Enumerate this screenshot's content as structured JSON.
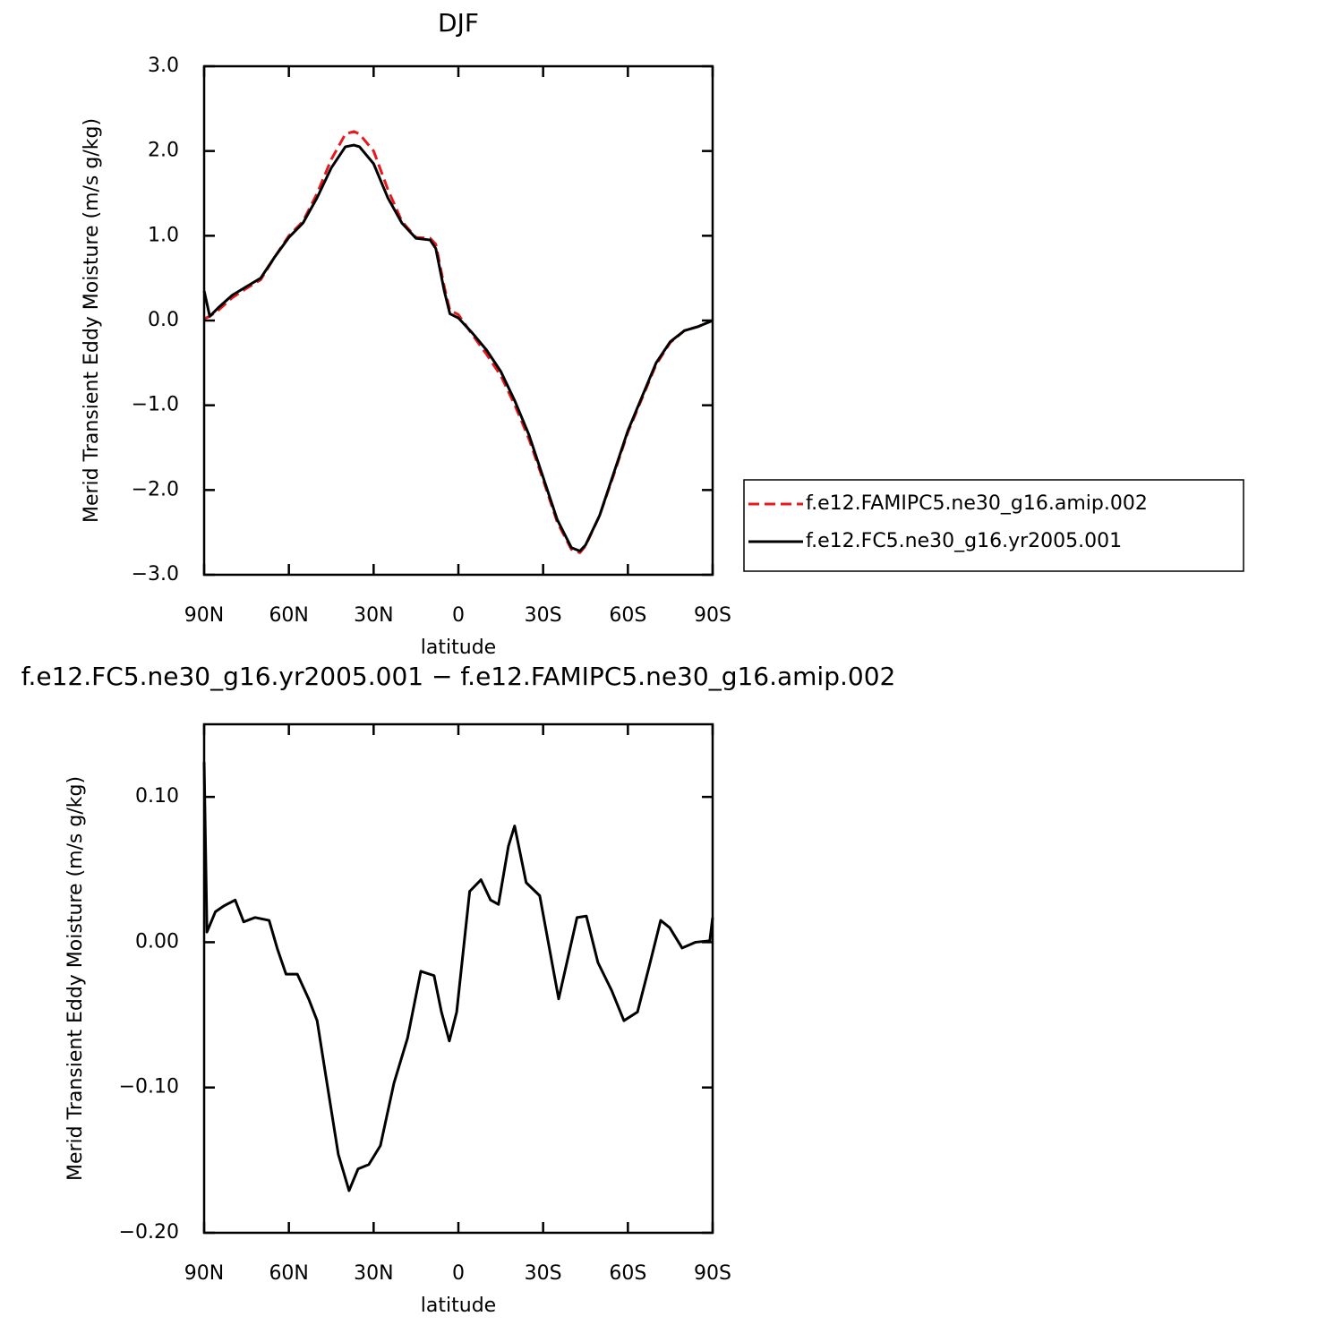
{
  "chart_data": [
    {
      "type": "line",
      "title": "DJF",
      "xlabel": "latitude",
      "ylabel": "Merid Transient Eddy Moisture (m/s g/kg)",
      "x": [
        90,
        88,
        85,
        80,
        75,
        70,
        65,
        60,
        55,
        50,
        45,
        40,
        37,
        35,
        30,
        25,
        20,
        15,
        10,
        8,
        5,
        3,
        0,
        -5,
        -10,
        -15,
        -20,
        -25,
        -30,
        -35,
        -40,
        -43,
        -45,
        -50,
        -55,
        -60,
        -65,
        -70,
        -75,
        -80,
        -85,
        -90
      ],
      "series": [
        {
          "name": "f.e12.FAMIPC5.ne30_g16.amip.002",
          "color": "#e8191c",
          "dash": "dashed",
          "values": [
            0.02,
            0.05,
            0.12,
            0.27,
            0.38,
            0.48,
            0.75,
            1.0,
            1.17,
            1.5,
            1.9,
            2.2,
            2.23,
            2.2,
            2.0,
            1.55,
            1.17,
            0.98,
            0.97,
            0.9,
            0.4,
            0.12,
            0.07,
            -0.17,
            -0.4,
            -0.65,
            -1.0,
            -1.4,
            -1.88,
            -2.38,
            -2.7,
            -2.74,
            -2.66,
            -2.3,
            -1.82,
            -1.32,
            -0.92,
            -0.52,
            -0.26,
            -0.12,
            -0.07,
            0.0
          ]
        },
        {
          "name": "f.e12.FC5.ne30_g16.yr2005.001",
          "color": "#000000",
          "dash": "solid",
          "values": [
            0.35,
            0.05,
            0.15,
            0.3,
            0.4,
            0.5,
            0.75,
            0.98,
            1.15,
            1.45,
            1.8,
            2.05,
            2.07,
            2.05,
            1.85,
            1.45,
            1.15,
            0.97,
            0.95,
            0.85,
            0.35,
            0.08,
            0.03,
            -0.15,
            -0.35,
            -0.6,
            -0.95,
            -1.35,
            -1.85,
            -2.35,
            -2.68,
            -2.72,
            -2.65,
            -2.3,
            -1.8,
            -1.3,
            -0.9,
            -0.5,
            -0.25,
            -0.12,
            -0.07,
            0.0
          ]
        }
      ],
      "xlim": [
        90,
        -90
      ],
      "xticks": [
        {
          "value": 90,
          "label": "90N"
        },
        {
          "value": 60,
          "label": "60N"
        },
        {
          "value": 30,
          "label": "30N"
        },
        0,
        {
          "value": -30,
          "label": "30S"
        },
        {
          "value": -60,
          "label": "60S"
        },
        {
          "value": -90,
          "label": "90S"
        }
      ],
      "ylim": [
        -3,
        3
      ],
      "yticks": [
        {
          "value": -3,
          "label": "−3.0"
        },
        {
          "value": -2,
          "label": "−2.0"
        },
        {
          "value": -1,
          "label": "−1.0"
        },
        {
          "value": 0,
          "label": "0.0"
        },
        {
          "value": 1,
          "label": "1.0"
        },
        {
          "value": 2,
          "label": "2.0"
        },
        {
          "value": 3,
          "label": "3.0"
        }
      ],
      "legend": "right"
    },
    {
      "type": "line",
      "title": "f.e12.FC5.ne30_g16.yr2005.001 − f.e12.FAMIPC5.ne30_g16.amip.002",
      "xlabel": "latitude",
      "ylabel": "Merid Transient Eddy Moisture (m/s g/kg)",
      "x": [
        90,
        89,
        86,
        83,
        79,
        76,
        72,
        67,
        64,
        61,
        57,
        53,
        50,
        47,
        42.5,
        38.7,
        35.5,
        31.7,
        27.6,
        22.8,
        18,
        13.3,
        8.6,
        6,
        3.2,
        0.6,
        -4,
        -8,
        -11.4,
        -14.2,
        -17.7,
        -19.9,
        -24,
        -28.8,
        -35.5,
        -42,
        -45.3,
        -49.4,
        -54.2,
        -58.6,
        -63.4,
        -67.5,
        -71.6,
        -74.8,
        -79.2,
        -84,
        -89,
        -90
      ],
      "values": [
        0.124,
        0.007,
        0.021,
        0.025,
        0.029,
        0.014,
        0.017,
        0.015,
        -0.005,
        -0.022,
        -0.022,
        -0.039,
        -0.054,
        -0.091,
        -0.146,
        -0.171,
        -0.156,
        -0.153,
        -0.14,
        -0.097,
        -0.066,
        -0.02,
        -0.023,
        -0.048,
        -0.068,
        -0.048,
        0.035,
        0.043,
        0.029,
        0.026,
        0.066,
        0.08,
        0.041,
        0.032,
        -0.039,
        0.017,
        0.018,
        -0.014,
        -0.033,
        -0.054,
        -0.048,
        -0.017,
        0.015,
        0.01,
        -0.004,
        0.0,
        0.001,
        0.017
      ],
      "color": "#000000",
      "xlim": [
        90,
        -90
      ],
      "xticks": [
        {
          "value": 90,
          "label": "90N"
        },
        {
          "value": 60,
          "label": "60N"
        },
        {
          "value": 30,
          "label": "30N"
        },
        0,
        {
          "value": -30,
          "label": "30S"
        },
        {
          "value": -60,
          "label": "60S"
        },
        {
          "value": -90,
          "label": "90S"
        }
      ],
      "ylim": [
        -0.2,
        0.15
      ],
      "yticks": [
        {
          "value": -0.2,
          "label": "−0.20"
        },
        {
          "value": -0.1,
          "label": "−0.10"
        },
        {
          "value": 0,
          "label": "0.00"
        },
        {
          "value": 0.1,
          "label": "0.10"
        }
      ]
    }
  ]
}
